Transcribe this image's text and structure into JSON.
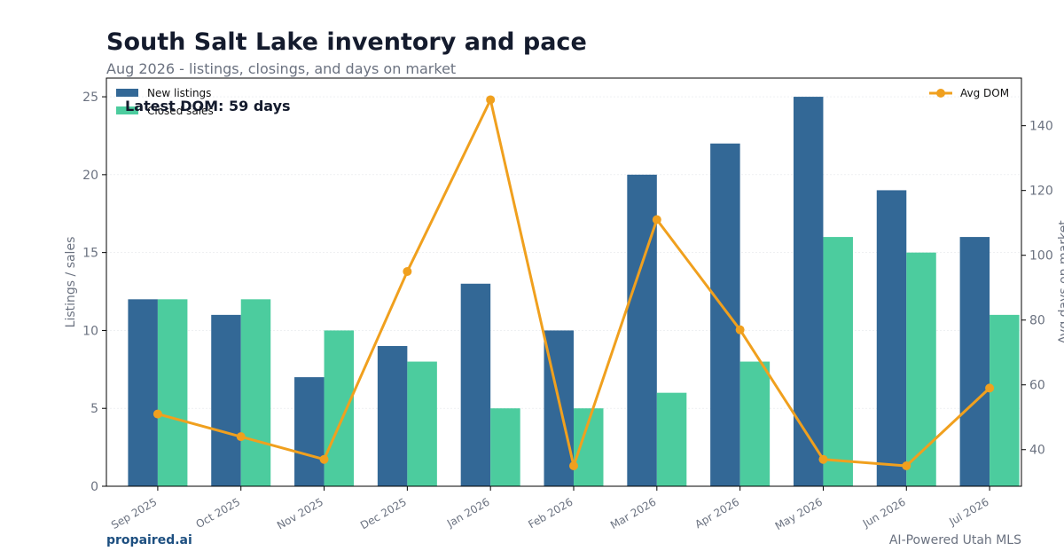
{
  "header": {
    "title": "South Salt Lake inventory and pace",
    "subtitle": "Aug 2026 - listings, closings, and days on market"
  },
  "footer": {
    "brand": "propaired.ai",
    "tagline": "AI-Powered Utah MLS"
  },
  "annotation": "Latest DOM: 59 days",
  "colors": {
    "new_listings": "#336896",
    "closed_sales": "#4ccc9e",
    "avg_dom": "#f0a01e",
    "axis_text": "#6b7280",
    "title": "#141b2d"
  },
  "chart_data": {
    "type": "bar",
    "title": "South Salt Lake inventory and pace",
    "subtitle": "Aug 2026 - listings, closings, and days on market",
    "categories": [
      "Sep 2025",
      "Oct 2025",
      "Nov 2025",
      "Dec 2025",
      "Jan 2026",
      "Feb 2026",
      "Mar 2026",
      "Apr 2026",
      "May 2026",
      "Jun 2026",
      "Jul 2026"
    ],
    "series": [
      {
        "name": "New listings",
        "type": "bar",
        "axis": "left",
        "values": [
          12,
          11,
          7,
          9,
          13,
          10,
          20,
          22,
          25,
          19,
          16
        ]
      },
      {
        "name": "Closed sales",
        "type": "bar",
        "axis": "left",
        "values": [
          12,
          12,
          10,
          8,
          5,
          5,
          6,
          8,
          16,
          15,
          11
        ]
      },
      {
        "name": "Avg DOM",
        "type": "line",
        "axis": "right",
        "values": [
          51,
          44,
          37,
          95,
          148,
          35,
          111,
          77,
          37,
          35,
          59
        ]
      }
    ],
    "ylabel": "Listings / sales",
    "y2label": "Avg days on market",
    "ylim": [
      0,
      26.2
    ],
    "y2lim": [
      28.7,
      154.7
    ],
    "yticks": [
      0,
      5,
      10,
      15,
      20,
      25
    ],
    "y2ticks": [
      40,
      60,
      80,
      100,
      120,
      140
    ],
    "grid": true,
    "legend_left": "top-left",
    "legend_right": "top-right"
  }
}
